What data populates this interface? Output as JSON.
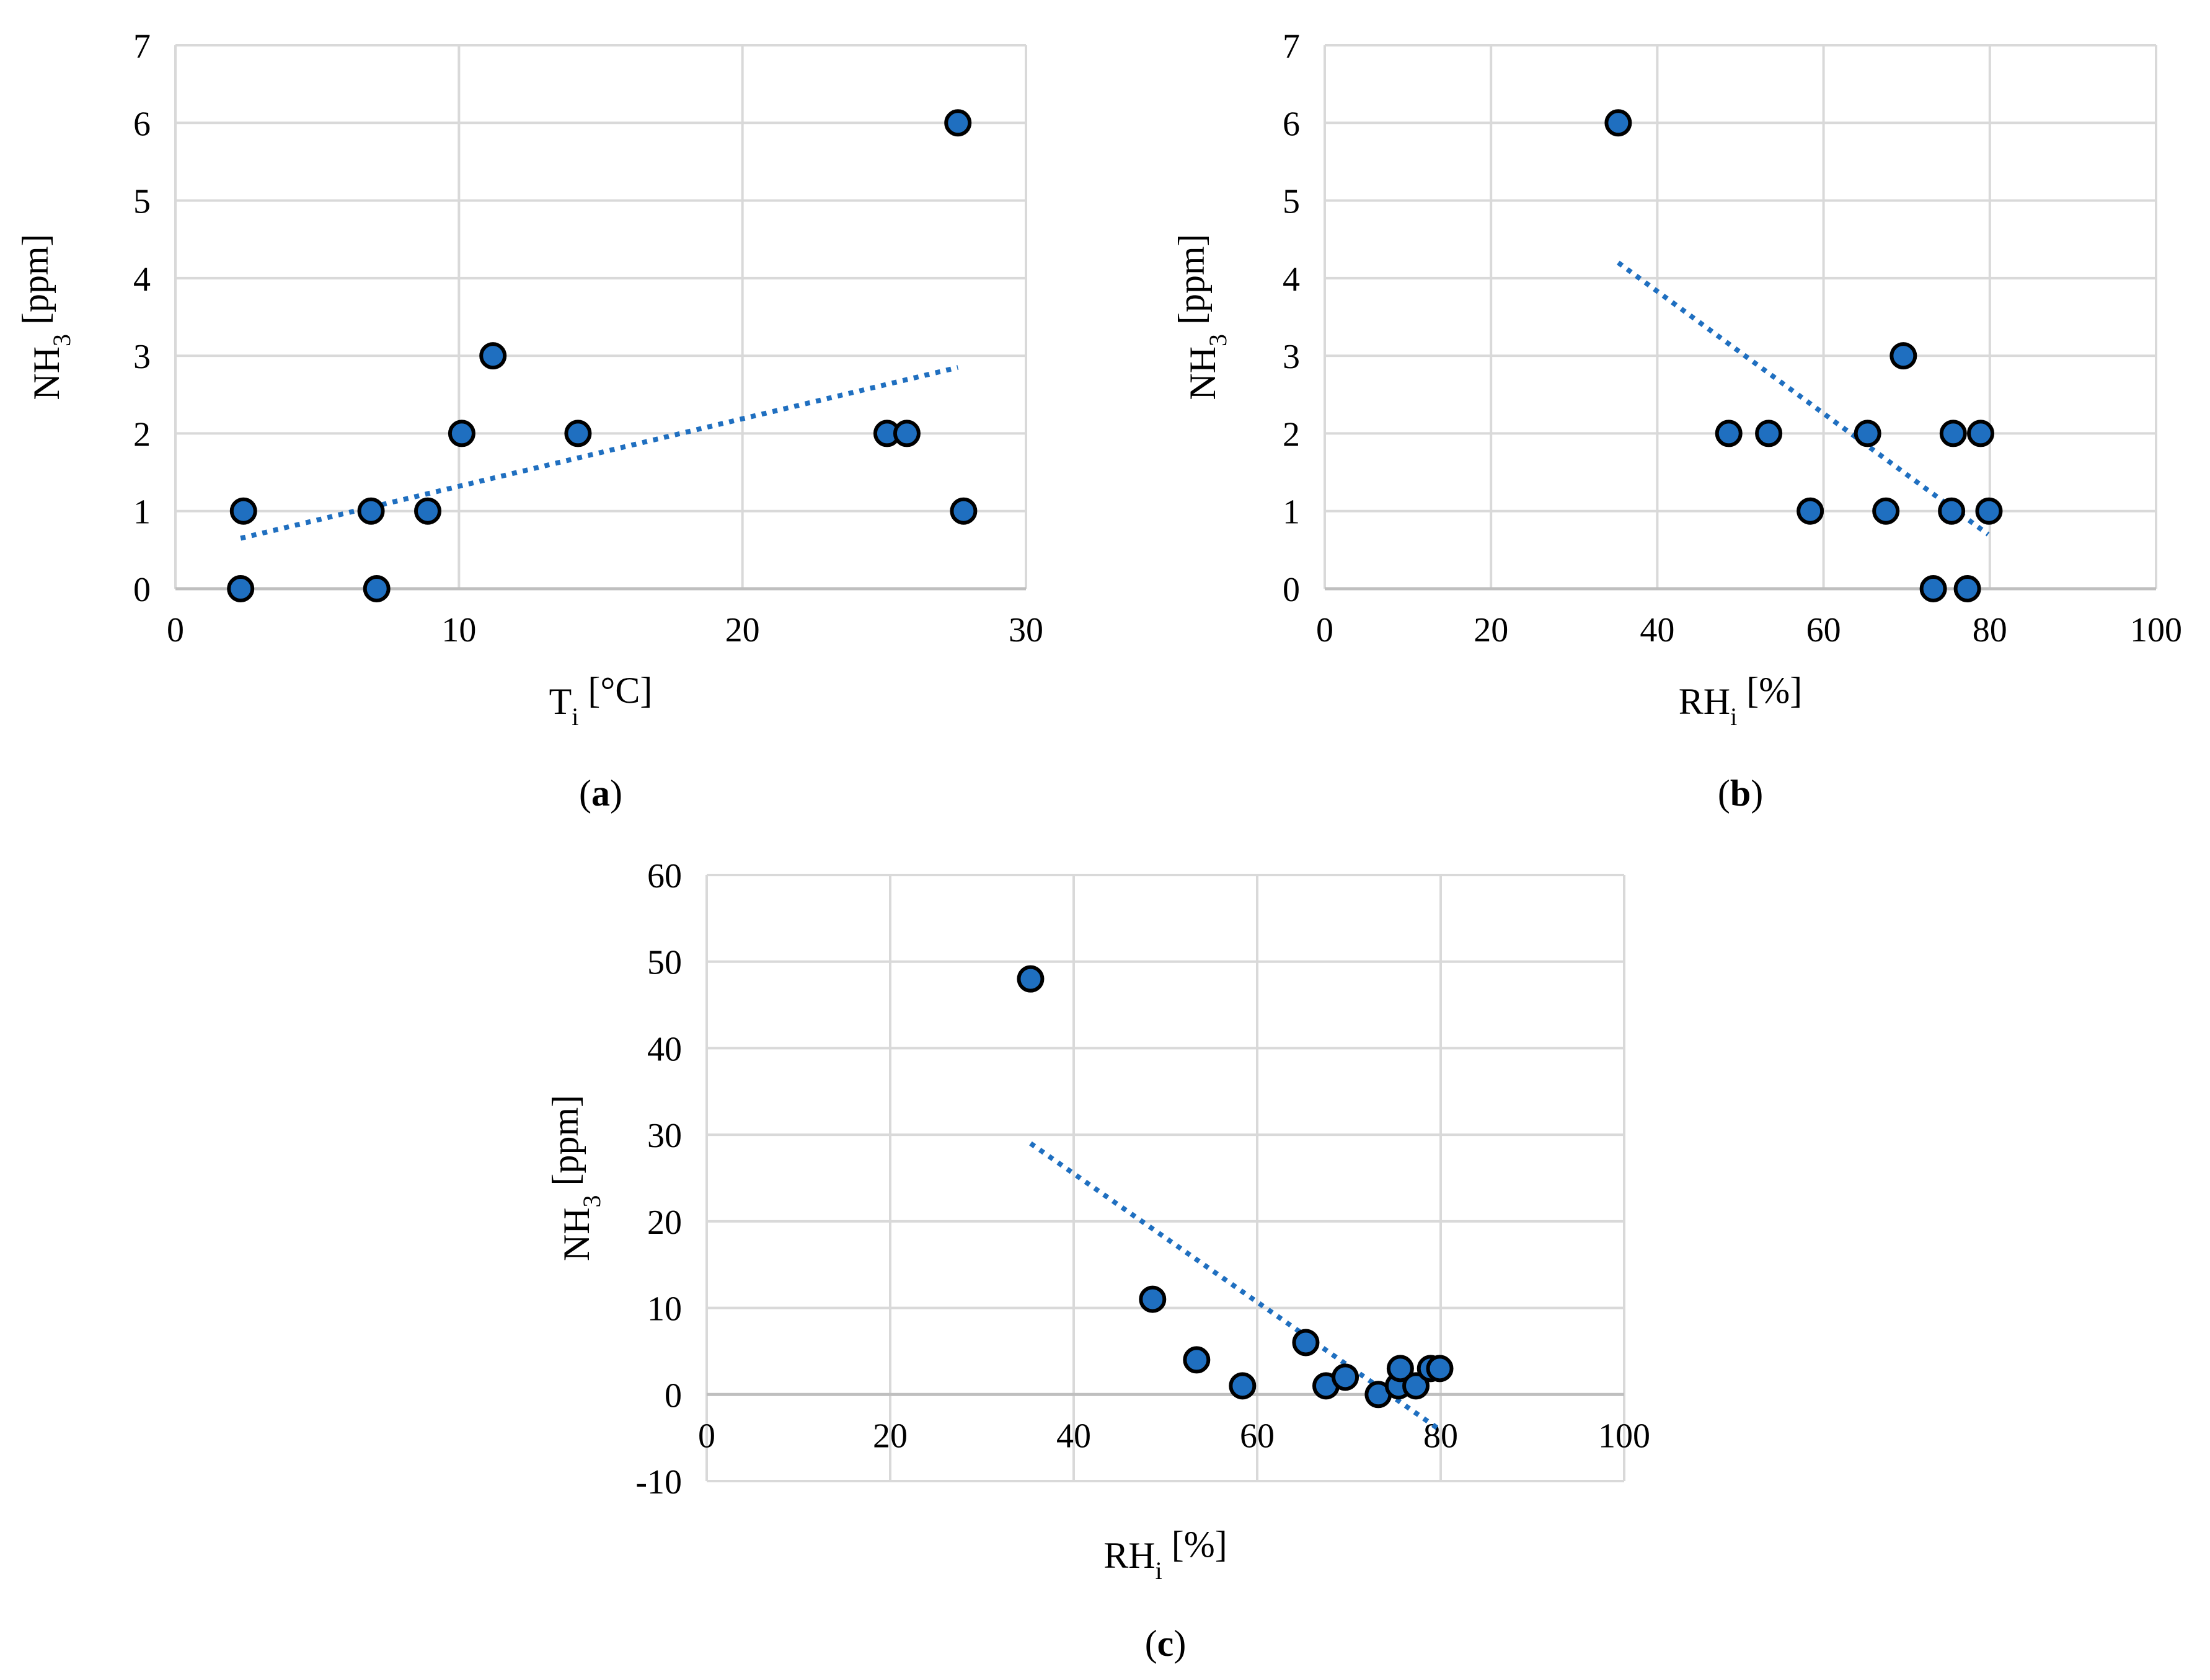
{
  "colors": {
    "marker_fill": "#1f6fc0",
    "marker_edge": "#000000",
    "trendline": "#1f6fc0",
    "grid": "#d9d9d9",
    "axis": "#bfbfbf"
  },
  "chart_data": [
    {
      "panel": "a",
      "type": "scatter",
      "label_open": "(",
      "label_letter": "a",
      "label_close": ")",
      "xlabel_main": "T",
      "xlabel_sub": "i",
      "xlabel_unit": " [°C]",
      "ylabel_main": "NH",
      "ylabel_sub": "3",
      "ylabel_unit": " [ppm]",
      "xlim": [
        0,
        30
      ],
      "ylim": [
        0,
        7
      ],
      "xticks": [
        0,
        10,
        20,
        30
      ],
      "yticks": [
        0,
        1,
        2,
        3,
        4,
        5,
        6,
        7
      ],
      "grid": true,
      "points": [
        {
          "x": 2.3,
          "y": 0
        },
        {
          "x": 2.4,
          "y": 1
        },
        {
          "x": 6.9,
          "y": 1
        },
        {
          "x": 7.1,
          "y": 0
        },
        {
          "x": 8.9,
          "y": 1
        },
        {
          "x": 10.1,
          "y": 2
        },
        {
          "x": 11.2,
          "y": 3
        },
        {
          "x": 14.2,
          "y": 2
        },
        {
          "x": 25.1,
          "y": 2
        },
        {
          "x": 25.8,
          "y": 2
        },
        {
          "x": 27.6,
          "y": 6
        },
        {
          "x": 27.8,
          "y": 1
        }
      ],
      "trendline": {
        "x": [
          2.3,
          27.6
        ],
        "y": [
          0.65,
          2.85
        ]
      }
    },
    {
      "panel": "b",
      "type": "scatter",
      "label_open": "(",
      "label_letter": "b",
      "label_close": ")",
      "xlabel_main": "RH",
      "xlabel_sub": "i",
      "xlabel_unit": " [%]",
      "ylabel_main": "NH",
      "ylabel_sub": "3",
      "ylabel_unit": " [ppm]",
      "xlim": [
        0,
        100
      ],
      "ylim": [
        0,
        7
      ],
      "xticks": [
        0,
        20,
        40,
        60,
        80,
        100
      ],
      "yticks": [
        0,
        1,
        2,
        3,
        4,
        5,
        6,
        7
      ],
      "grid": true,
      "points": [
        {
          "x": 35.3,
          "y": 6
        },
        {
          "x": 48.6,
          "y": 2
        },
        {
          "x": 53.4,
          "y": 2
        },
        {
          "x": 58.4,
          "y": 1
        },
        {
          "x": 65.3,
          "y": 2
        },
        {
          "x": 67.5,
          "y": 1
        },
        {
          "x": 69.6,
          "y": 3
        },
        {
          "x": 73.2,
          "y": 0
        },
        {
          "x": 75.4,
          "y": 1
        },
        {
          "x": 75.6,
          "y": 2
        },
        {
          "x": 77.3,
          "y": 0
        },
        {
          "x": 78.9,
          "y": 2
        },
        {
          "x": 79.9,
          "y": 1
        }
      ],
      "trendline": {
        "x": [
          35.3,
          79.8
        ],
        "y": [
          4.2,
          0.7
        ]
      }
    },
    {
      "panel": "c",
      "type": "scatter",
      "label_open": "(",
      "label_letter": "c",
      "label_close": ")",
      "xlabel_main": "RH",
      "xlabel_sub": "i",
      "xlabel_unit": " [%]",
      "ylabel_main": "NH",
      "ylabel_sub": "3",
      "ylabel_unit": " [ppm]",
      "xlim": [
        0,
        100
      ],
      "ylim": [
        -10,
        60
      ],
      "xticks": [
        0,
        20,
        40,
        60,
        80,
        100
      ],
      "yticks": [
        -10,
        0,
        10,
        20,
        30,
        40,
        50,
        60
      ],
      "grid": true,
      "points": [
        {
          "x": 35.3,
          "y": 48
        },
        {
          "x": 48.6,
          "y": 11
        },
        {
          "x": 53.4,
          "y": 4
        },
        {
          "x": 58.4,
          "y": 1
        },
        {
          "x": 65.3,
          "y": 6
        },
        {
          "x": 67.5,
          "y": 1
        },
        {
          "x": 69.6,
          "y": 2
        },
        {
          "x": 73.2,
          "y": 0
        },
        {
          "x": 75.4,
          "y": 1
        },
        {
          "x": 75.6,
          "y": 3
        },
        {
          "x": 77.3,
          "y": 1
        },
        {
          "x": 78.9,
          "y": 3
        },
        {
          "x": 79.9,
          "y": 3
        }
      ],
      "trendline": {
        "x": [
          35.3,
          79.8
        ],
        "y": [
          29,
          -4
        ]
      }
    }
  ]
}
